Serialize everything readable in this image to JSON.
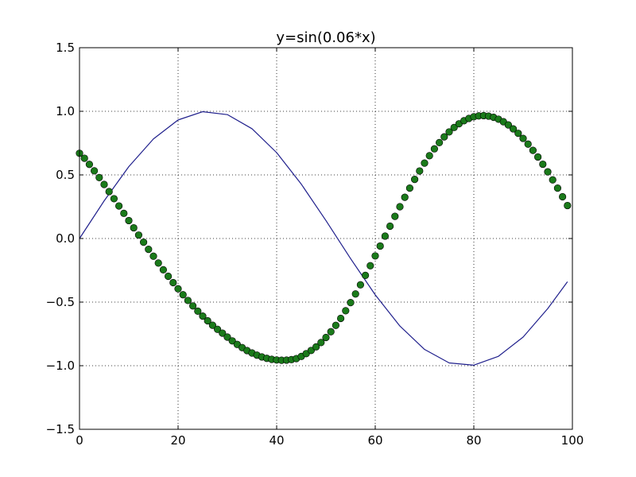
{
  "chart_data": {
    "type": "line",
    "title": "y=sin(0.06*x)",
    "xlabel": "",
    "ylabel": "",
    "xlim": [
      0,
      100
    ],
    "ylim": [
      -1.5,
      1.5
    ],
    "grid": true,
    "x_ticks": [
      "0",
      "20",
      "40",
      "60",
      "80",
      "100"
    ],
    "y_ticks": [
      "1.5",
      "1.0",
      "0.5",
      "0.0",
      "−0.5",
      "−1.0",
      "−1.5"
    ],
    "series": [
      {
        "style": "line",
        "color": "#1f1f8c",
        "x": [
          0,
          5,
          10,
          15,
          20,
          25,
          30,
          35,
          40,
          45,
          50,
          55,
          60,
          65,
          70,
          75,
          80,
          85,
          90,
          95,
          99
        ],
        "y": [
          0.0,
          0.296,
          0.565,
          0.783,
          0.932,
          0.997,
          0.974,
          0.863,
          0.675,
          0.427,
          0.141,
          -0.158,
          -0.443,
          -0.688,
          -0.872,
          -0.978,
          -0.996,
          -0.926,
          -0.775,
          -0.551,
          -0.34
        ]
      },
      {
        "style": "markers",
        "color": "#1a7a1a",
        "x": [
          0,
          1,
          2,
          3,
          4,
          5,
          6,
          7,
          8,
          9,
          10,
          11,
          12,
          13,
          14,
          15,
          16,
          17,
          18,
          19,
          20,
          21,
          22,
          23,
          24,
          25,
          26,
          27,
          28,
          29,
          30,
          31,
          32,
          33,
          34,
          35,
          36,
          37,
          38,
          39,
          40,
          41,
          42,
          43,
          44,
          45,
          46,
          47,
          48,
          49,
          50,
          51,
          52,
          53,
          54,
          55,
          56,
          57,
          58,
          59,
          60,
          61,
          62,
          63,
          64,
          65,
          66,
          67,
          68,
          69,
          70,
          71,
          72,
          73,
          74,
          75,
          76,
          77,
          78,
          79,
          80,
          81,
          82,
          83,
          84,
          85,
          86,
          87,
          88,
          89,
          90,
          91,
          92,
          93,
          94,
          95,
          96,
          97,
          98,
          99
        ],
        "y": [
          0.67,
          0.631,
          0.583,
          0.532,
          0.479,
          0.425,
          0.369,
          0.313,
          0.256,
          0.198,
          0.141,
          0.084,
          0.027,
          -0.029,
          -0.085,
          -0.139,
          -0.193,
          -0.246,
          -0.297,
          -0.347,
          -0.395,
          -0.442,
          -0.487,
          -0.53,
          -0.571,
          -0.61,
          -0.647,
          -0.682,
          -0.714,
          -0.744,
          -0.775,
          -0.805,
          -0.833,
          -0.858,
          -0.881,
          -0.9,
          -0.917,
          -0.931,
          -0.942,
          -0.95,
          -0.955,
          -0.957,
          -0.956,
          -0.952,
          -0.944,
          -0.927,
          -0.905,
          -0.88,
          -0.852,
          -0.818,
          -0.778,
          -0.733,
          -0.683,
          -0.628,
          -0.568,
          -0.504,
          -0.436,
          -0.364,
          -0.29,
          -0.214,
          -0.137,
          -0.059,
          0.019,
          0.097,
          0.174,
          0.25,
          0.324,
          0.396,
          0.465,
          0.531,
          0.593,
          0.651,
          0.705,
          0.754,
          0.799,
          0.838,
          0.873,
          0.902,
          0.926,
          0.944,
          0.957,
          0.964,
          0.966,
          0.962,
          0.953,
          0.938,
          0.918,
          0.893,
          0.862,
          0.827,
          0.787,
          0.742,
          0.693,
          0.641,
          0.584,
          0.524,
          0.461,
          0.396,
          0.328,
          0.259
        ]
      }
    ]
  }
}
